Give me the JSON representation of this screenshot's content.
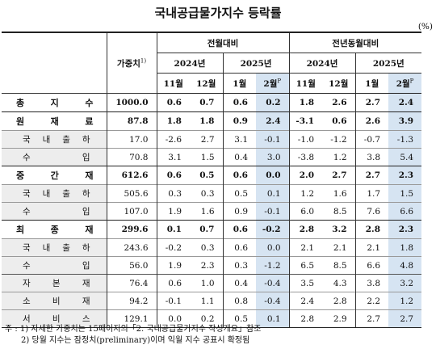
{
  "title": "국내공급물가지수 등락률",
  "unit": "(%)",
  "header": {
    "weight_label": "가중치",
    "weight_sup": "1)",
    "mom_label": "전월대비",
    "yoy_label": "전년동월대비",
    "year_2024": "2024년",
    "year_2025": "2025년",
    "months": [
      "11월",
      "12월",
      "1월",
      "2월"
    ],
    "prelim_sup": "P"
  },
  "rows": [
    {
      "name": "총 지 수",
      "weight": "1000.0",
      "v": [
        "0.6",
        "0.7",
        "0.6",
        "0.2",
        "1.8",
        "2.6",
        "2.7",
        "2.4"
      ]
    },
    {
      "name": "원 재 료",
      "weight": "87.8",
      "v": [
        "1.8",
        "1.8",
        "0.9",
        "2.4",
        "-3.1",
        "0.6",
        "2.6",
        "3.9"
      ]
    },
    {
      "name": "국 내 출 하",
      "weight": "17.0",
      "v": [
        "-2.6",
        "2.7",
        "3.1",
        "-0.1",
        "-1.0",
        "-1.2",
        "-0.7",
        "-1.3"
      ]
    },
    {
      "name": "수 입",
      "weight": "70.8",
      "v": [
        "3.1",
        "1.5",
        "0.4",
        "3.0",
        "-3.8",
        "1.2",
        "3.8",
        "5.4"
      ]
    },
    {
      "name": "중 간 재",
      "weight": "612.6",
      "v": [
        "0.6",
        "0.5",
        "0.6",
        "0.0",
        "2.0",
        "2.7",
        "2.7",
        "2.3"
      ]
    },
    {
      "name": "국 내 출 하",
      "weight": "505.6",
      "v": [
        "0.3",
        "0.3",
        "0.5",
        "0.1",
        "1.2",
        "1.6",
        "1.7",
        "1.5"
      ]
    },
    {
      "name": "수 입",
      "weight": "107.0",
      "v": [
        "1.9",
        "1.6",
        "0.9",
        "-0.1",
        "6.0",
        "8.5",
        "7.6",
        "6.6"
      ]
    },
    {
      "name": "최 종 재",
      "weight": "299.6",
      "v": [
        "0.1",
        "0.7",
        "0.6",
        "-0.2",
        "2.8",
        "3.2",
        "2.8",
        "2.3"
      ]
    },
    {
      "name": "국 내 출 하",
      "weight": "243.6",
      "v": [
        "-0.2",
        "0.3",
        "0.6",
        "0.0",
        "2.1",
        "2.1",
        "2.1",
        "1.8"
      ]
    },
    {
      "name": "수 입",
      "weight": "56.0",
      "v": [
        "1.9",
        "2.3",
        "0.3",
        "-1.2",
        "6.5",
        "8.5",
        "6.6",
        "4.8"
      ]
    },
    {
      "name": "자 본 재",
      "weight": "76.4",
      "v": [
        "0.6",
        "1.0",
        "0.4",
        "-0.4",
        "3.5",
        "4.3",
        "3.8",
        "3.2"
      ]
    },
    {
      "name": "소 비 재",
      "weight": "94.2",
      "v": [
        "-0.1",
        "1.1",
        "0.8",
        "-0.4",
        "2.4",
        "2.8",
        "2.2",
        "1.2"
      ]
    },
    {
      "name": "서 비 스",
      "weight": "129.1",
      "v": [
        "0.0",
        "0.2",
        "0.5",
        "0.1",
        "2.8",
        "2.9",
        "2.7",
        "2.7"
      ]
    }
  ],
  "notes": [
    "주 : 1) 자세한 가중치는 15페이지의「2. 국내공급물가지수 작성개요」참조",
    "2) 당월 지수는 잠정치(preliminary)이며 익월 지수 공표시 확정됨"
  ],
  "colors": {
    "prelim_bg": "#d6e4f2",
    "label_bg": "#ededed"
  }
}
